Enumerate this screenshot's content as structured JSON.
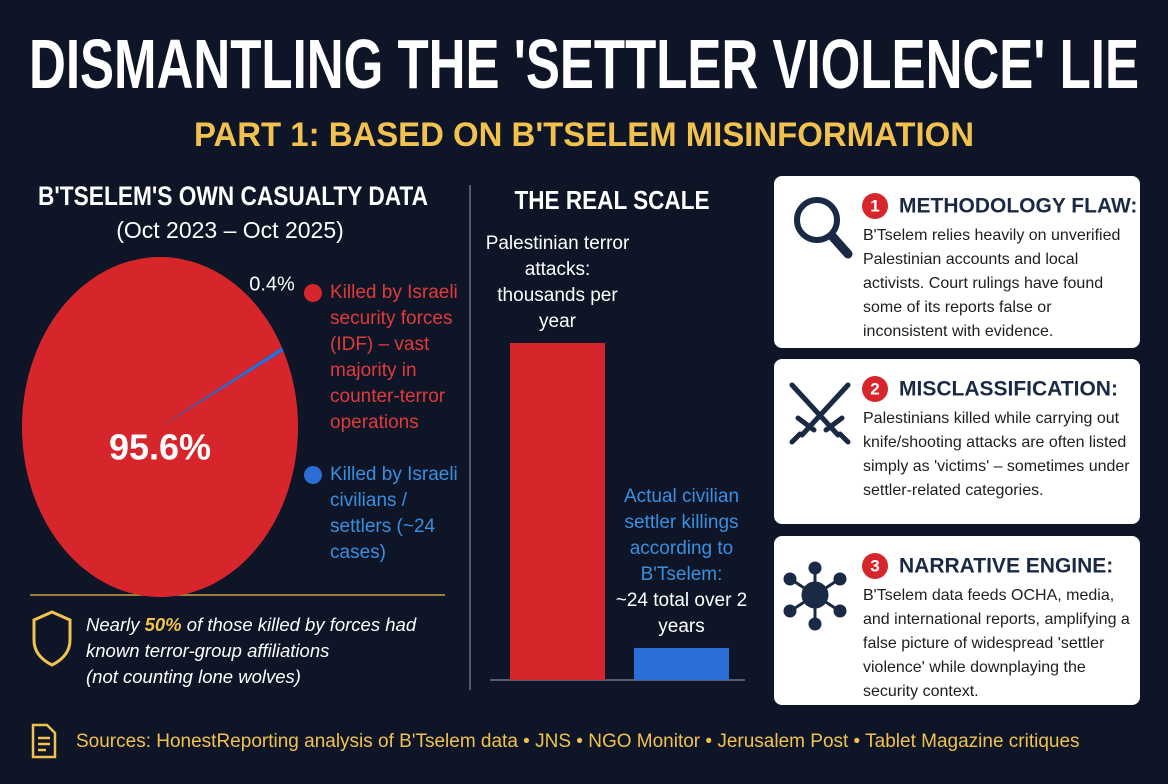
{
  "header": {
    "title": "DISMANTLING THE 'SETTLER VIOLENCE' LIE",
    "subtitle": "PART 1: BASED ON B'TSELEM MISINFORMATION"
  },
  "chart_data": [
    {
      "type": "pie",
      "title": "B'TSELEM'S OWN CASUALTY DATA",
      "subtitle": "(Oct 2023 – Oct 2025)",
      "categories": [
        "Killed by Israeli security forces (IDF) – vast majority in counter-terror operations",
        "Killed by Israeli civilians / settlers (~24 cases)"
      ],
      "values": [
        95.6,
        0.4
      ],
      "value_labels": [
        "95.6%",
        "0.4%"
      ],
      "colors": [
        "#d7262b",
        "#2b6fd6"
      ]
    },
    {
      "type": "bar",
      "title": "THE REAL SCALE",
      "categories": [
        "Palestinian terror attacks: thousands per year",
        "Actual civilian settler killings according to B'Tselem:"
      ],
      "annotations": [
        "~24 total over 2 years"
      ],
      "values": [
        100,
        9.5
      ],
      "ylim": [
        0,
        100
      ],
      "colors": [
        "#d7262b",
        "#2b6fd6"
      ]
    }
  ],
  "note": {
    "parts": [
      "Nearly ",
      "50%",
      " of those killed by forces had known terror-group affiliations"
    ],
    "aside": "(not counting lone wolves)"
  },
  "panels": [
    {
      "number": 1,
      "title": "METHODOLOGY FLAW:",
      "text": "B'Tselem relies heavily on unverified Palestinian accounts and local activists. Court rulings have found some of its reports false or inconsistent with evidence."
    },
    {
      "number": 2,
      "title": "MISCLASSIFICATION:",
      "text": "Palestinians killed while carrying out knife/shooting attacks are often listed simply as 'victims' – sometimes under settler-related categories."
    },
    {
      "number": 3,
      "title": "NARRATIVE ENGINE:",
      "text": "B'Tselem data feeds OCHA, media, and international reports, amplifying a false picture of widespread 'settler violence' while downplaying the security context."
    }
  ],
  "sources": "Sources: HonestReporting analysis of B'Tselem data • JNS • NGO Monitor • Jerusalem Post • Tablet Magazine critiques"
}
